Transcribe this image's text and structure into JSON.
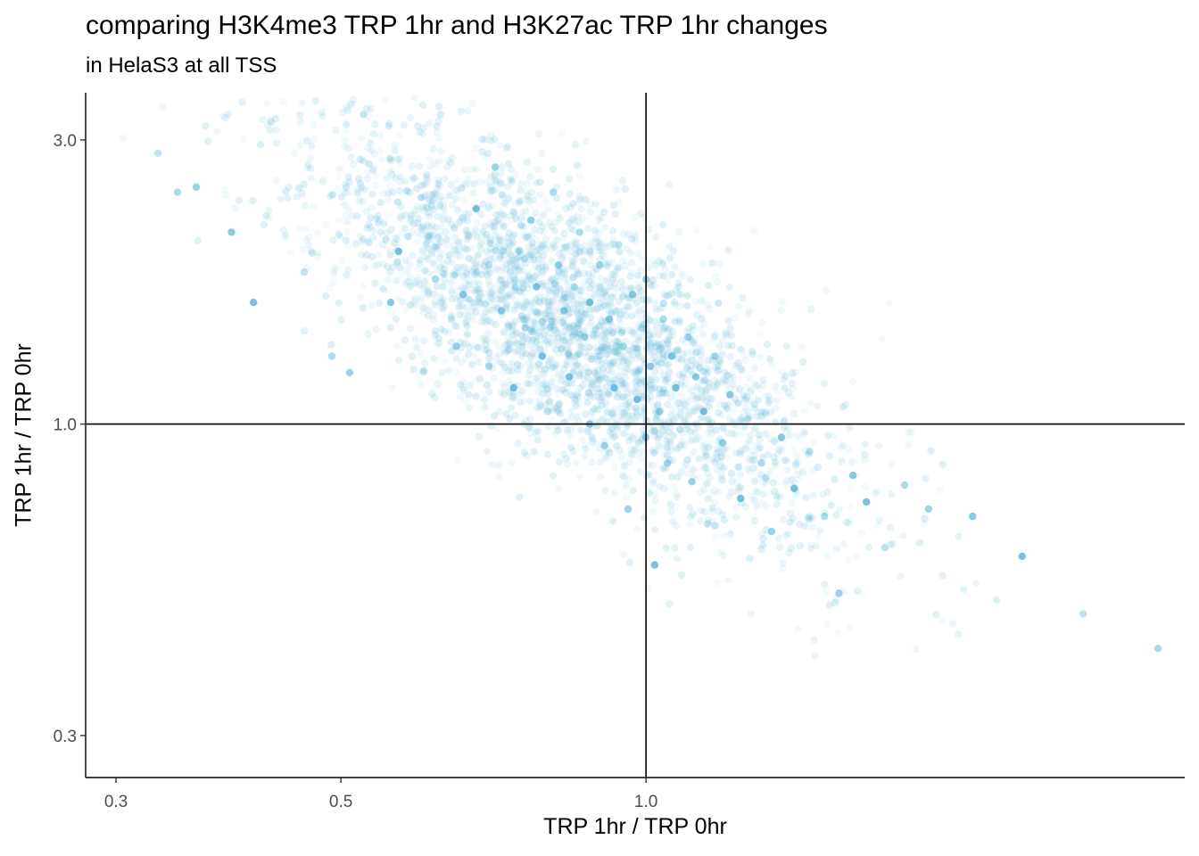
{
  "chart_data": {
    "type": "scatter",
    "title": "comparing H3K4me3 TRP 1hr and H3K27ac TRP 1hr changes",
    "subtitle": "in HelaS3 at all TSS",
    "xlabel": "TRP 1hr / TRP 0hr",
    "ylabel": "TRP 1hr / TRP 0hr",
    "x_scale": "log",
    "y_scale": "log",
    "xlim": [
      0.28,
      3.4
    ],
    "ylim": [
      0.255,
      3.6
    ],
    "x_ticks": [
      0.3,
      0.5,
      1.0
    ],
    "x_tick_labels": [
      "0.3",
      "0.5",
      "1.0"
    ],
    "y_ticks": [
      0.3,
      1.0,
      3.0
    ],
    "y_tick_labels": [
      "0.3",
      "1.0",
      "3.0"
    ],
    "reference_lines": {
      "x": 1.0,
      "y": 1.0
    },
    "grid": false,
    "legend": "none",
    "point_color": "#4aaed4",
    "point_color_alt": "#7fcfb8",
    "points": [
      [
        0.33,
        2.85
      ],
      [
        0.345,
        2.45
      ],
      [
        0.36,
        2.5
      ],
      [
        0.39,
        2.1
      ],
      [
        0.41,
        1.6
      ],
      [
        0.46,
        1.8
      ],
      [
        0.49,
        1.3
      ],
      [
        0.51,
        1.22
      ],
      [
        0.56,
        1.6
      ],
      [
        0.57,
        1.95
      ],
      [
        0.6,
        2.4
      ],
      [
        0.62,
        1.75
      ],
      [
        0.65,
        1.35
      ],
      [
        0.66,
        1.65
      ],
      [
        0.68,
        2.3
      ],
      [
        0.7,
        1.85
      ],
      [
        0.7,
        1.25
      ],
      [
        0.71,
        2.7
      ],
      [
        0.72,
        1.55
      ],
      [
        0.74,
        1.15
      ],
      [
        0.75,
        1.95
      ],
      [
        0.76,
        1.45
      ],
      [
        0.77,
        2.2
      ],
      [
        0.78,
        1.7
      ],
      [
        0.79,
        1.3
      ],
      [
        0.8,
        1.05
      ],
      [
        0.81,
        2.45
      ],
      [
        0.82,
        1.85
      ],
      [
        0.83,
        1.55
      ],
      [
        0.84,
        1.2
      ],
      [
        0.85,
        1.7
      ],
      [
        0.86,
        2.1
      ],
      [
        0.87,
        1.4
      ],
      [
        0.88,
        1.0
      ],
      [
        0.88,
        1.6
      ],
      [
        0.9,
        1.3
      ],
      [
        0.9,
        1.85
      ],
      [
        0.91,
        0.92
      ],
      [
        0.92,
        1.5
      ],
      [
        0.93,
        1.15
      ],
      [
        0.94,
        2.0
      ],
      [
        0.95,
        1.35
      ],
      [
        0.96,
        0.72
      ],
      [
        0.97,
        1.65
      ],
      [
        0.98,
        1.1
      ],
      [
        0.99,
        1.45
      ],
      [
        1.0,
        0.95
      ],
      [
        1.0,
        1.75
      ],
      [
        1.01,
        1.25
      ],
      [
        1.02,
        0.58
      ],
      [
        1.03,
        1.05
      ],
      [
        1.04,
        1.5
      ],
      [
        1.05,
        0.86
      ],
      [
        1.06,
        1.3
      ],
      [
        1.07,
        1.15
      ],
      [
        1.08,
        0.98
      ],
      [
        1.1,
        1.4
      ],
      [
        1.11,
        0.8
      ],
      [
        1.12,
        1.2
      ],
      [
        1.14,
        1.05
      ],
      [
        1.15,
        0.68
      ],
      [
        1.17,
        1.3
      ],
      [
        1.19,
        0.93
      ],
      [
        1.21,
        1.12
      ],
      [
        1.24,
        0.75
      ],
      [
        1.26,
        1.02
      ],
      [
        1.3,
        0.86
      ],
      [
        1.33,
        0.66
      ],
      [
        1.36,
        0.95
      ],
      [
        1.4,
        0.78
      ],
      [
        1.45,
        0.9
      ],
      [
        1.5,
        0.7
      ],
      [
        1.55,
        0.52
      ],
      [
        1.6,
        0.82
      ],
      [
        1.65,
        0.74
      ],
      [
        1.72,
        0.62
      ],
      [
        1.8,
        0.79
      ],
      [
        1.9,
        0.72
      ],
      [
        2.1,
        0.7
      ],
      [
        2.35,
        0.6
      ],
      [
        2.7,
        0.48
      ],
      [
        3.2,
        0.42
      ]
    ]
  }
}
